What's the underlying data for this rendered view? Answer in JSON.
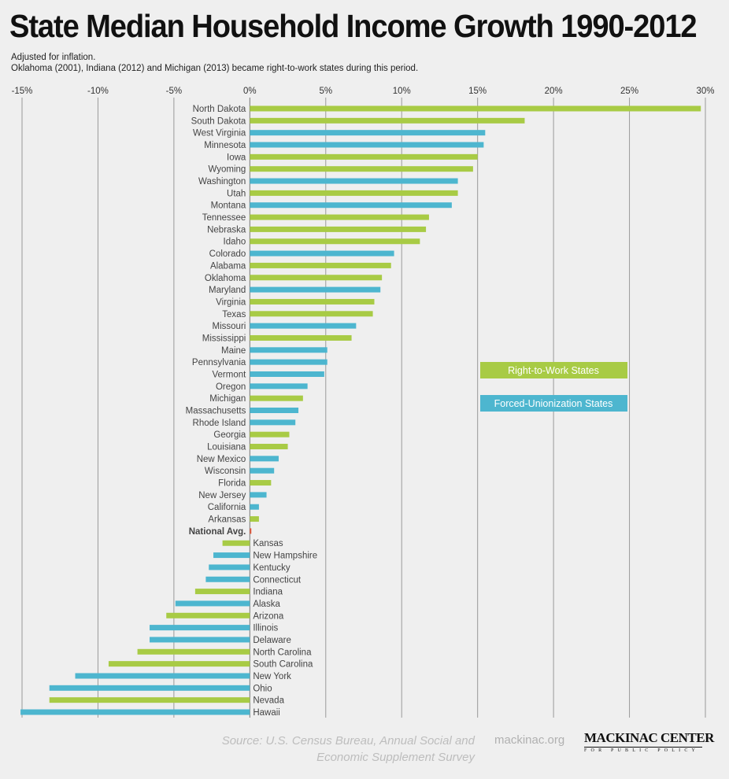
{
  "header": {
    "title": "State Median Household Income Growth 1990-2012",
    "subtitle1": "Adjusted for inflation.",
    "subtitle2": "Oklahoma (2001), Indiana (2012) and Michigan (2013) became right-to-work states during this period."
  },
  "footer": {
    "source_line1": "Source: U.S. Census Bureau, Annual Social and",
    "source_line2": "Economic Supplement Survey",
    "site": "mackinac.org",
    "logo_name": "MACKINAC CENTER",
    "logo_tagline": "FOR PUBLIC POLICY"
  },
  "colors": {
    "rtw": "#a8cb45",
    "forced": "#4db6cf",
    "national": "#e2583b",
    "grid": "#9a9a9a"
  },
  "chart_data": {
    "type": "bar",
    "orientation": "horizontal",
    "title": "State Median Household Income Growth 1990-2012",
    "xlim": [
      -15,
      30
    ],
    "ticks": [
      -15,
      -10,
      -5,
      0,
      5,
      10,
      15,
      20,
      25,
      30
    ],
    "tick_labels": [
      "-15%",
      "-10%",
      "-5%",
      "0%",
      "5%",
      "10%",
      "15%",
      "20%",
      "25%",
      "30%"
    ],
    "legend": {
      "placement": "right-middle",
      "entries": [
        {
          "key": "rtw",
          "label": "Right-to-Work States"
        },
        {
          "key": "forced",
          "label": "Forced-Unionization States"
        }
      ]
    },
    "rows": [
      {
        "label": "North Dakota",
        "value": 29.7,
        "group": "rtw"
      },
      {
        "label": "South Dakota",
        "value": 18.1,
        "group": "rtw"
      },
      {
        "label": "West Virginia",
        "value": 15.5,
        "group": "forced"
      },
      {
        "label": "Minnesota",
        "value": 15.4,
        "group": "forced"
      },
      {
        "label": "Iowa",
        "value": 15.0,
        "group": "rtw"
      },
      {
        "label": "Wyoming",
        "value": 14.7,
        "group": "rtw"
      },
      {
        "label": "Washington",
        "value": 13.7,
        "group": "forced"
      },
      {
        "label": "Utah",
        "value": 13.7,
        "group": "rtw"
      },
      {
        "label": "Montana",
        "value": 13.3,
        "group": "forced"
      },
      {
        "label": "Tennessee",
        "value": 11.8,
        "group": "rtw"
      },
      {
        "label": "Nebraska",
        "value": 11.6,
        "group": "rtw"
      },
      {
        "label": "Idaho",
        "value": 11.2,
        "group": "rtw"
      },
      {
        "label": "Colorado",
        "value": 9.5,
        "group": "forced"
      },
      {
        "label": "Alabama",
        "value": 9.3,
        "group": "rtw"
      },
      {
        "label": "Oklahoma",
        "value": 8.7,
        "group": "rtw"
      },
      {
        "label": "Maryland",
        "value": 8.6,
        "group": "forced"
      },
      {
        "label": "Virginia",
        "value": 8.2,
        "group": "rtw"
      },
      {
        "label": "Texas",
        "value": 8.1,
        "group": "rtw"
      },
      {
        "label": "Missouri",
        "value": 7.0,
        "group": "forced"
      },
      {
        "label": "Mississippi",
        "value": 6.7,
        "group": "rtw"
      },
      {
        "label": "Maine",
        "value": 5.1,
        "group": "forced"
      },
      {
        "label": "Pennsylvania",
        "value": 5.1,
        "group": "forced"
      },
      {
        "label": "Vermont",
        "value": 4.9,
        "group": "forced"
      },
      {
        "label": "Oregon",
        "value": 3.8,
        "group": "forced"
      },
      {
        "label": "Michigan",
        "value": 3.5,
        "group": "rtw"
      },
      {
        "label": "Massachusetts",
        "value": 3.2,
        "group": "forced"
      },
      {
        "label": "Rhode Island",
        "value": 3.0,
        "group": "forced"
      },
      {
        "label": "Georgia",
        "value": 2.6,
        "group": "rtw"
      },
      {
        "label": "Louisiana",
        "value": 2.5,
        "group": "rtw"
      },
      {
        "label": "New Mexico",
        "value": 1.9,
        "group": "forced"
      },
      {
        "label": "Wisconsin",
        "value": 1.6,
        "group": "forced"
      },
      {
        "label": "Florida",
        "value": 1.4,
        "group": "rtw"
      },
      {
        "label": "New Jersey",
        "value": 1.1,
        "group": "forced"
      },
      {
        "label": "California",
        "value": 0.6,
        "group": "forced"
      },
      {
        "label": "Arkansas",
        "value": 0.6,
        "group": "rtw"
      },
      {
        "label": "National Avg.",
        "value": 0.1,
        "group": "national"
      },
      {
        "label": "Kansas",
        "value": -1.8,
        "group": "rtw"
      },
      {
        "label": "New Hampshire",
        "value": -2.4,
        "group": "forced"
      },
      {
        "label": "Kentucky",
        "value": -2.7,
        "group": "forced"
      },
      {
        "label": "Connecticut",
        "value": -2.9,
        "group": "forced"
      },
      {
        "label": "Indiana",
        "value": -3.6,
        "group": "rtw"
      },
      {
        "label": "Alaska",
        "value": -4.9,
        "group": "forced"
      },
      {
        "label": "Arizona",
        "value": -5.5,
        "group": "rtw"
      },
      {
        "label": "Illinois",
        "value": -6.6,
        "group": "forced"
      },
      {
        "label": "Delaware",
        "value": -6.6,
        "group": "forced"
      },
      {
        "label": "North Carolina",
        "value": -7.4,
        "group": "rtw"
      },
      {
        "label": "South Carolina",
        "value": -9.3,
        "group": "rtw"
      },
      {
        "label": "New York",
        "value": -11.5,
        "group": "forced"
      },
      {
        "label": "Ohio",
        "value": -13.2,
        "group": "forced"
      },
      {
        "label": "Nevada",
        "value": -13.2,
        "group": "rtw"
      },
      {
        "label": "Hawaii",
        "value": -15.1,
        "group": "forced"
      }
    ]
  }
}
